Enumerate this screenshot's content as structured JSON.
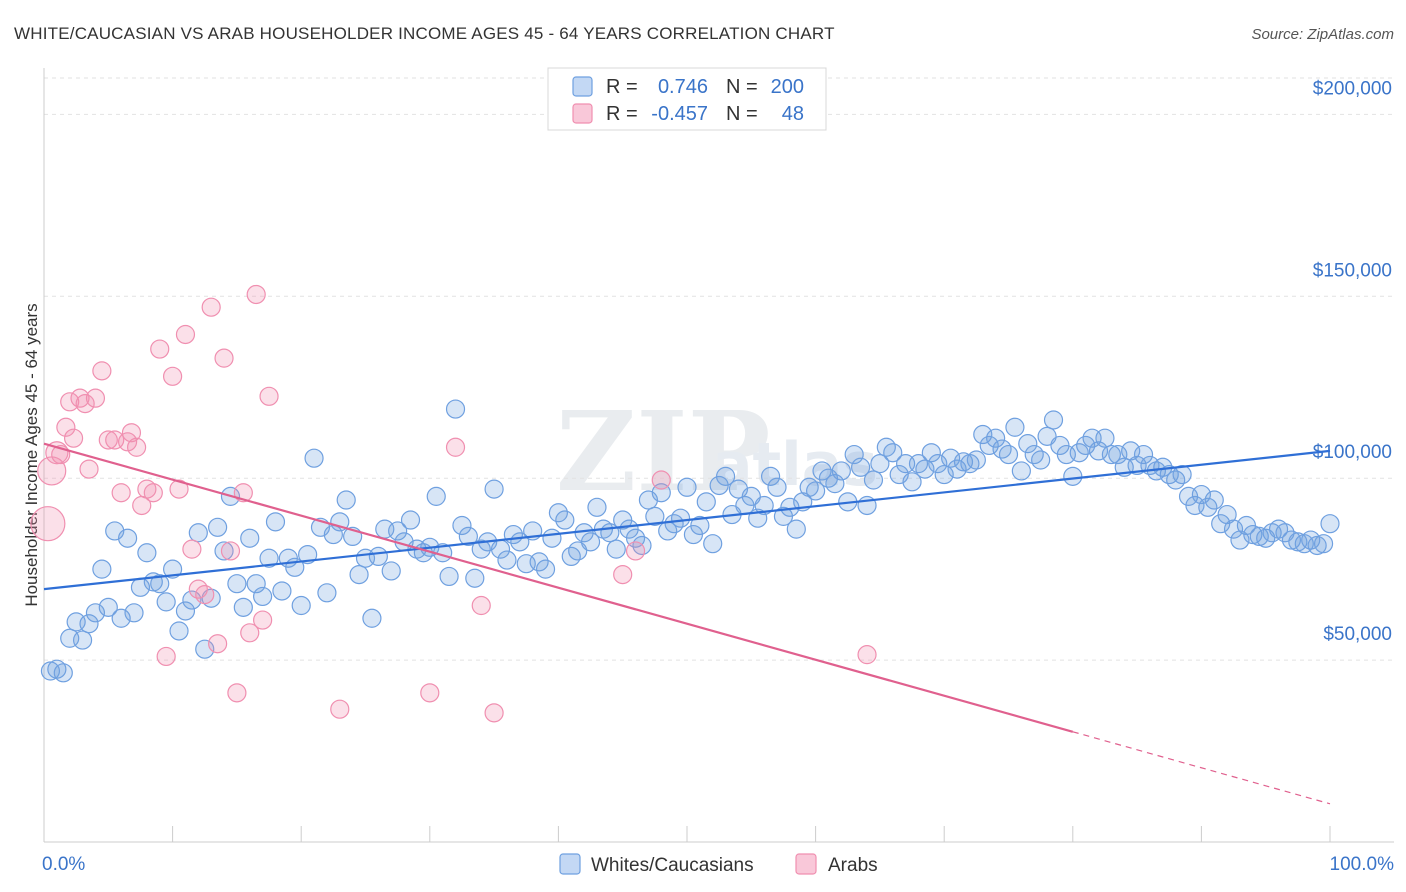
{
  "chart_data": {
    "type": "scatter",
    "title": "WHITE/CAUCASIAN VS ARAB HOUSEHOLDER INCOME AGES 45 - 64 YEARS CORRELATION CHART",
    "source": "Source: ZipAtlas.com",
    "ylabel": "Householder Income Ages 45 - 64 years",
    "xlim": [
      0,
      100
    ],
    "ylim": [
      0,
      210000
    ],
    "x_tick_labels": [
      "0.0%",
      "100.0%"
    ],
    "y_ticks": [
      {
        "value": 50000,
        "label": "$50,000"
      },
      {
        "value": 100000,
        "label": "$100,000"
      },
      {
        "value": 150000,
        "label": "$150,000"
      },
      {
        "value": 200000,
        "label": "$200,000"
      }
    ],
    "legend": {
      "rows": [
        {
          "r_label": "R =",
          "r_value": "0.746",
          "n_label": "N =",
          "n_value": "200"
        },
        {
          "r_label": "R =",
          "r_value": "-0.457",
          "n_label": "N =",
          "n_value": "48"
        }
      ]
    },
    "watermark": "ZIPatlas",
    "series": [
      {
        "name": "Whites/Caucasians",
        "color": "#6fa0e0",
        "trend": {
          "x": [
            0,
            100
          ],
          "y": [
            69500,
            107500
          ],
          "dashed_from": null
        },
        "points": [
          [
            0.5,
            47000
          ],
          [
            1,
            47500
          ],
          [
            1.5,
            46500
          ],
          [
            2,
            56000
          ],
          [
            2.5,
            60500
          ],
          [
            3,
            55500
          ],
          [
            3.5,
            60000
          ],
          [
            4,
            63000
          ],
          [
            4.5,
            75000
          ],
          [
            5,
            64500
          ],
          [
            5.5,
            85500
          ],
          [
            6,
            61500
          ],
          [
            6.5,
            83500
          ],
          [
            7,
            63000
          ],
          [
            7.5,
            70000
          ],
          [
            8,
            79500
          ],
          [
            8.5,
            71500
          ],
          [
            9,
            71000
          ],
          [
            9.5,
            66000
          ],
          [
            10,
            75000
          ],
          [
            10.5,
            58000
          ],
          [
            11,
            63500
          ],
          [
            11.5,
            66500
          ],
          [
            12,
            85000
          ],
          [
            12.5,
            53000
          ],
          [
            13,
            67000
          ],
          [
            13.5,
            86500
          ],
          [
            14,
            80000
          ],
          [
            14.5,
            95000
          ],
          [
            15,
            71000
          ],
          [
            15.5,
            64500
          ],
          [
            16,
            83500
          ],
          [
            16.5,
            71000
          ],
          [
            17,
            67500
          ],
          [
            17.5,
            78000
          ],
          [
            18,
            88000
          ],
          [
            18.5,
            69000
          ],
          [
            19,
            78000
          ],
          [
            19.5,
            75500
          ],
          [
            20,
            65000
          ],
          [
            20.5,
            79000
          ],
          [
            21,
            105500
          ],
          [
            21.5,
            86500
          ],
          [
            22,
            68500
          ],
          [
            22.5,
            84500
          ],
          [
            23,
            88000
          ],
          [
            23.5,
            94000
          ],
          [
            24,
            84000
          ],
          [
            24.5,
            73500
          ],
          [
            25,
            78000
          ],
          [
            25.5,
            61500
          ],
          [
            26,
            78500
          ],
          [
            26.5,
            86000
          ],
          [
            27,
            74500
          ],
          [
            27.5,
            85500
          ],
          [
            28,
            82500
          ],
          [
            28.5,
            88500
          ],
          [
            29,
            80500
          ],
          [
            29.5,
            79500
          ],
          [
            30,
            81000
          ],
          [
            30.5,
            95000
          ],
          [
            31,
            79500
          ],
          [
            31.5,
            73000
          ],
          [
            32,
            119000
          ],
          [
            32.5,
            87000
          ],
          [
            33,
            84000
          ],
          [
            33.5,
            72500
          ],
          [
            34,
            80500
          ],
          [
            34.5,
            82500
          ],
          [
            35,
            97000
          ],
          [
            35.5,
            80500
          ],
          [
            36,
            77500
          ],
          [
            36.5,
            84500
          ],
          [
            37,
            82500
          ],
          [
            37.5,
            76500
          ],
          [
            38,
            85500
          ],
          [
            38.5,
            77000
          ],
          [
            39,
            75000
          ],
          [
            39.5,
            83500
          ],
          [
            40,
            90500
          ],
          [
            40.5,
            88500
          ],
          [
            41,
            78500
          ],
          [
            41.5,
            80000
          ],
          [
            42,
            85000
          ],
          [
            42.5,
            82500
          ],
          [
            43,
            92000
          ],
          [
            43.5,
            86000
          ],
          [
            44,
            85000
          ],
          [
            44.5,
            80500
          ],
          [
            45,
            88500
          ],
          [
            45.5,
            86000
          ],
          [
            46,
            83500
          ],
          [
            46.5,
            81500
          ],
          [
            47,
            94000
          ],
          [
            47.5,
            89500
          ],
          [
            48,
            96000
          ],
          [
            48.5,
            85500
          ],
          [
            49,
            87500
          ],
          [
            49.5,
            89000
          ],
          [
            50,
            97500
          ],
          [
            50.5,
            84500
          ],
          [
            51,
            87000
          ],
          [
            51.5,
            93500
          ],
          [
            52,
            82000
          ],
          [
            52.5,
            98000
          ],
          [
            53,
            100500
          ],
          [
            53.5,
            90000
          ],
          [
            54,
            97000
          ],
          [
            54.5,
            92500
          ],
          [
            55,
            95000
          ],
          [
            55.5,
            89000
          ],
          [
            56,
            92500
          ],
          [
            56.5,
            100500
          ],
          [
            57,
            97500
          ],
          [
            57.5,
            89500
          ],
          [
            58,
            92000
          ],
          [
            58.5,
            86000
          ],
          [
            59,
            93500
          ],
          [
            59.5,
            97500
          ],
          [
            60,
            96500
          ],
          [
            60.5,
            102000
          ],
          [
            61,
            100000
          ],
          [
            61.5,
            98500
          ],
          [
            62,
            102000
          ],
          [
            62.5,
            93500
          ],
          [
            63,
            106500
          ],
          [
            63.5,
            103000
          ],
          [
            64,
            92500
          ],
          [
            64.5,
            99500
          ],
          [
            65,
            104000
          ],
          [
            65.5,
            108500
          ],
          [
            66,
            107000
          ],
          [
            66.5,
            101000
          ],
          [
            67,
            104000
          ],
          [
            67.5,
            99000
          ],
          [
            68,
            104000
          ],
          [
            68.5,
            102500
          ],
          [
            69,
            107000
          ],
          [
            69.5,
            104000
          ],
          [
            70,
            101000
          ],
          [
            70.5,
            105500
          ],
          [
            71,
            102500
          ],
          [
            71.5,
            104500
          ],
          [
            72,
            104000
          ],
          [
            72.5,
            105000
          ],
          [
            73,
            112000
          ],
          [
            73.5,
            109000
          ],
          [
            74,
            111000
          ],
          [
            74.5,
            108000
          ],
          [
            75,
            106500
          ],
          [
            75.5,
            114000
          ],
          [
            76,
            102000
          ],
          [
            76.5,
            109500
          ],
          [
            77,
            106500
          ],
          [
            77.5,
            105000
          ],
          [
            78,
            111500
          ],
          [
            78.5,
            116000
          ],
          [
            79,
            109000
          ],
          [
            79.5,
            106500
          ],
          [
            80,
            100500
          ],
          [
            80.5,
            107000
          ],
          [
            81,
            109000
          ],
          [
            81.5,
            111000
          ],
          [
            82,
            107500
          ],
          [
            82.5,
            111000
          ],
          [
            83,
            106500
          ],
          [
            83.5,
            106500
          ],
          [
            84,
            103000
          ],
          [
            84.5,
            107500
          ],
          [
            85,
            103500
          ],
          [
            85.5,
            106500
          ],
          [
            86,
            103500
          ],
          [
            86.5,
            102000
          ],
          [
            87,
            103000
          ],
          [
            87.5,
            101000
          ],
          [
            88,
            99500
          ],
          [
            88.5,
            101000
          ],
          [
            89,
            95000
          ],
          [
            89.5,
            92500
          ],
          [
            90,
            95500
          ],
          [
            90.5,
            92000
          ],
          [
            91,
            94000
          ],
          [
            91.5,
            87500
          ],
          [
            92,
            90000
          ],
          [
            92.5,
            86000
          ],
          [
            93,
            83000
          ],
          [
            93.5,
            87000
          ],
          [
            94,
            84500
          ],
          [
            94.5,
            84000
          ],
          [
            95,
            83500
          ],
          [
            95.5,
            85000
          ],
          [
            96,
            86000
          ],
          [
            96.5,
            85000
          ],
          [
            97,
            83000
          ],
          [
            97.5,
            82500
          ],
          [
            98,
            82000
          ],
          [
            98.5,
            83000
          ],
          [
            99,
            81500
          ],
          [
            99.5,
            82000
          ],
          [
            100,
            87500
          ]
        ]
      },
      {
        "name": "Arabs",
        "color": "#f08fb0",
        "trend": {
          "x": [
            0,
            100
          ],
          "y": [
            109500,
            10500
          ],
          "dashed_from": 80
        },
        "points": [
          [
            0.3,
            87500
          ],
          [
            0.6,
            102000
          ],
          [
            1,
            107000
          ],
          [
            1.3,
            106500
          ],
          [
            1.7,
            114000
          ],
          [
            2,
            121000
          ],
          [
            2.3,
            111000
          ],
          [
            2.8,
            122000
          ],
          [
            3.2,
            120500
          ],
          [
            3.5,
            102500
          ],
          [
            4,
            122000
          ],
          [
            4.5,
            129500
          ],
          [
            5,
            110500
          ],
          [
            5.5,
            110500
          ],
          [
            6,
            96000
          ],
          [
            6.5,
            110000
          ],
          [
            6.8,
            112500
          ],
          [
            7.2,
            108500
          ],
          [
            7.6,
            92500
          ],
          [
            8,
            97000
          ],
          [
            8.5,
            96000
          ],
          [
            9,
            135500
          ],
          [
            9.5,
            51000
          ],
          [
            10,
            128000
          ],
          [
            10.5,
            97000
          ],
          [
            11,
            139500
          ],
          [
            11.5,
            80500
          ],
          [
            12,
            69500
          ],
          [
            12.5,
            68000
          ],
          [
            13,
            147000
          ],
          [
            13.5,
            54500
          ],
          [
            14,
            133000
          ],
          [
            14.5,
            80000
          ],
          [
            15,
            41000
          ],
          [
            15.5,
            96000
          ],
          [
            16,
            57500
          ],
          [
            16.5,
            150500
          ],
          [
            17,
            61000
          ],
          [
            17.5,
            122500
          ],
          [
            23,
            36500
          ],
          [
            30,
            41000
          ],
          [
            32,
            108500
          ],
          [
            34,
            65000
          ],
          [
            35,
            35500
          ],
          [
            46,
            80000
          ],
          [
            45,
            73500
          ],
          [
            48,
            99500
          ],
          [
            64,
            51500
          ]
        ]
      }
    ]
  }
}
